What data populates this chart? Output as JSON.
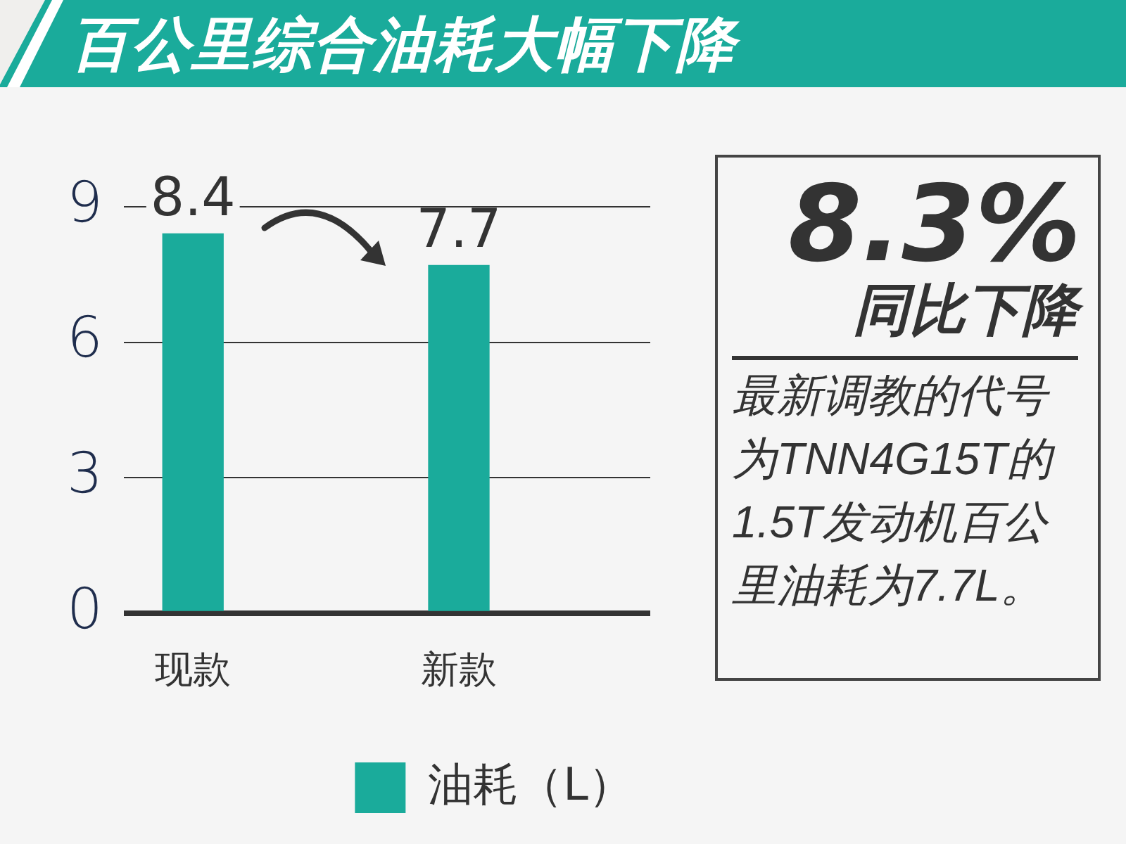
{
  "chart_data": {
    "type": "bar",
    "title": "百公里综合油耗大幅下降",
    "categories": [
      "现款",
      "新款"
    ],
    "series": [
      {
        "name": "油耗（L）",
        "color": "#1aab9b",
        "values": [
          8.4,
          7.7
        ]
      }
    ],
    "ylim": [
      0,
      9
    ],
    "yticks": [
      0,
      3,
      6,
      9
    ],
    "grid": "y",
    "legend": "bottom",
    "data_labels": true,
    "annotations": [
      "8.3%",
      "同比下降",
      "最新调教的代号为TNN4G15T的1.5T发动机百公里油耗为7.7L。"
    ]
  }
}
